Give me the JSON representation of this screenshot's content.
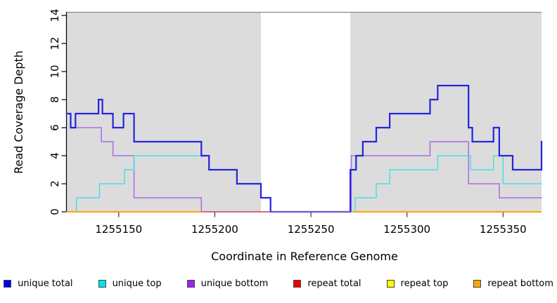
{
  "figure": {
    "colors": {
      "background": "#FFFFFF",
      "shaded": "#DCDCDC",
      "frame": "#8C8C8C",
      "axis": "#000000",
      "tick": "#333333"
    }
  },
  "chart_data": {
    "type": "line",
    "subtype": "step-coverage-plot",
    "title": "",
    "xlabel": "Coordinate in Reference Genome",
    "ylabel": "Read Coverage Depth",
    "xlim": [
      1255123,
      1255370
    ],
    "ylim": [
      0,
      14
    ],
    "x_ticks": [
      1255150,
      1255200,
      1255250,
      1255300,
      1255350
    ],
    "y_ticks": [
      0,
      2,
      4,
      6,
      8,
      10,
      12,
      14
    ],
    "grid": "off",
    "legend_position": "bottom",
    "shaded_regions": [
      [
        1255123,
        1255224
      ],
      [
        1255270.5,
        1255370
      ]
    ],
    "gap_region": [
      1255224,
      1255270.5
    ],
    "series": [
      {
        "name": "unique total",
        "color": "#0000EE",
        "line_color": "#2424E0",
        "line_width": 2.2,
        "x_end": 1255370,
        "steps": [
          [
            1255123,
            7
          ],
          [
            1255125,
            6
          ],
          [
            1255127.5,
            7
          ],
          [
            1255139.5,
            8
          ],
          [
            1255141.5,
            7
          ],
          [
            1255147,
            6
          ],
          [
            1255152.5,
            7
          ],
          [
            1255158,
            5
          ],
          [
            1255193,
            4
          ],
          [
            1255197,
            3
          ],
          [
            1255211.5,
            2
          ],
          [
            1255224,
            1
          ],
          [
            1255229,
            0
          ],
          [
            1255270.5,
            3
          ],
          [
            1255273.5,
            4
          ],
          [
            1255277,
            5
          ],
          [
            1255284,
            6
          ],
          [
            1255291,
            7
          ],
          [
            1255312,
            8
          ],
          [
            1255316,
            9
          ],
          [
            1255332,
            6
          ],
          [
            1255334,
            5
          ],
          [
            1255345,
            6
          ],
          [
            1255348,
            4
          ],
          [
            1255355,
            3
          ],
          [
            1255370,
            5
          ]
        ]
      },
      {
        "name": "unique top",
        "color": "#00E5EE",
        "line_color": "#4ADEE6",
        "line_width": 1.5,
        "x_end": 1255370,
        "steps": [
          [
            1255123,
            0
          ],
          [
            1255128,
            1
          ],
          [
            1255140,
            2
          ],
          [
            1255153,
            3
          ],
          [
            1255158,
            4
          ],
          [
            1255197,
            3
          ],
          [
            1255211.5,
            2
          ],
          [
            1255224,
            1
          ],
          [
            1255229,
            0
          ],
          [
            1255273,
            1
          ],
          [
            1255284,
            2
          ],
          [
            1255291,
            3
          ],
          [
            1255316,
            4
          ],
          [
            1255333,
            3
          ],
          [
            1255345,
            4
          ],
          [
            1255350,
            2
          ]
        ]
      },
      {
        "name": "unique bottom",
        "color": "#A020F0",
        "line_color": "#AE6BDF",
        "line_width": 1.5,
        "x_end": 1255370,
        "steps": [
          [
            1255123,
            7
          ],
          [
            1255125,
            6
          ],
          [
            1255141,
            5
          ],
          [
            1255147,
            4
          ],
          [
            1255158,
            1
          ],
          [
            1255193,
            0
          ],
          [
            1255271,
            4
          ],
          [
            1255312,
            5
          ],
          [
            1255332,
            2
          ],
          [
            1255348,
            1
          ]
        ]
      },
      {
        "name": "repeat total",
        "color": "#EE0000",
        "constant_value": 0
      },
      {
        "name": "repeat top",
        "color": "#FFFF00",
        "constant_value": 0
      },
      {
        "name": "repeat bottom",
        "color": "#FFA500",
        "constant_value": 0
      }
    ],
    "zero_line_segments": [
      {
        "x1": 1255123,
        "x2": 1255193,
        "color": "#FFA500",
        "width": 2
      },
      {
        "x1": 1255193,
        "x2": 1255229,
        "color": "#D9506A",
        "width": 1.6
      },
      {
        "x1": 1255229,
        "x2": 1255270.5,
        "color": "#6A5ACD",
        "width": 2
      },
      {
        "x1": 1255272,
        "x2": 1255370,
        "color": "#FFA500",
        "width": 2
      }
    ]
  },
  "legend": {
    "items": [
      {
        "label": "unique total",
        "color": "#0000EE"
      },
      {
        "label": "unique top",
        "color": "#00E5EE"
      },
      {
        "label": "unique bottom",
        "color": "#A020F0"
      },
      {
        "label": "repeat total",
        "color": "#EE0000"
      },
      {
        "label": "repeat top",
        "color": "#FFFF00"
      },
      {
        "label": "repeat bottom",
        "color": "#FFA500"
      }
    ]
  }
}
